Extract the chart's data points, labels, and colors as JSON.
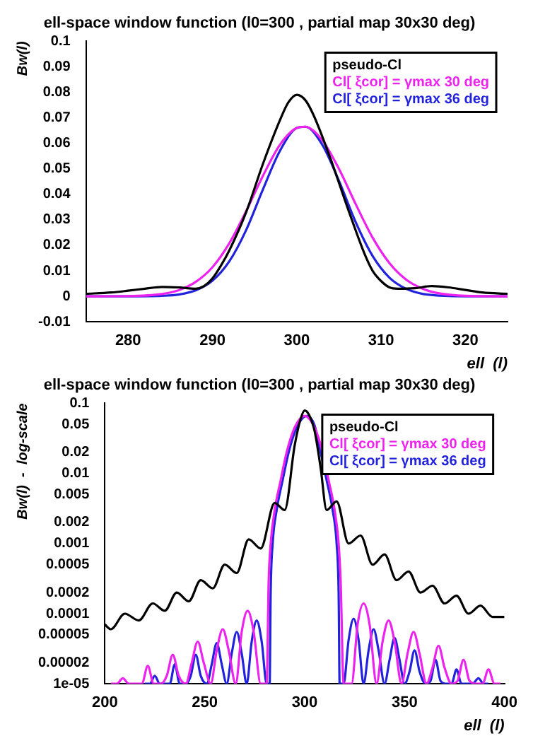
{
  "chart_data": [
    {
      "type": "line",
      "title": "ell-space window function (l0=300 , partial map 30x30 deg)",
      "xlabel": "ell  (l)",
      "ylabel": "Bw(l)",
      "xlim": [
        275,
        325
      ],
      "xticks": [
        280,
        290,
        300,
        310,
        320
      ],
      "ylim": [
        -0.01,
        0.1
      ],
      "yticks": [
        -0.01,
        0,
        0.01,
        0.02,
        0.03,
        0.04,
        0.05,
        0.06,
        0.07,
        0.08,
        0.09,
        0.1
      ],
      "grid": false,
      "legend": "top right",
      "marker": "none",
      "line_style": "solid",
      "series": [
        {
          "name": "pseudo-Cl",
          "color": "#000000",
          "x": [
            275,
            278,
            280,
            282,
            284,
            286,
            288,
            289,
            290,
            291,
            292,
            294,
            296,
            298,
            299,
            300,
            301,
            302,
            304,
            306,
            308,
            309,
            310,
            311,
            312,
            314,
            316,
            318,
            320,
            322,
            325
          ],
          "values": [
            0.001,
            0.0015,
            0.0022,
            0.003,
            0.0037,
            0.0035,
            0.003,
            0.004,
            0.007,
            0.012,
            0.018,
            0.033,
            0.052,
            0.069,
            0.076,
            0.079,
            0.077,
            0.071,
            0.054,
            0.035,
            0.017,
            0.01,
            0.006,
            0.0035,
            0.003,
            0.0032,
            0.004,
            0.0035,
            0.0025,
            0.0015,
            0.001
          ]
        },
        {
          "name": "Cl[ ξcor] = γmax 30 deg",
          "color": "#ee22ee",
          "x": [
            275,
            280,
            284,
            286,
            288,
            290,
            292,
            294,
            296,
            298,
            300,
            301,
            303,
            305,
            307,
            309,
            311,
            313,
            315,
            317,
            320,
            325
          ],
          "values": [
            0,
            0.0001,
            0.0009,
            0.0024,
            0.0056,
            0.0114,
            0.0208,
            0.0334,
            0.0473,
            0.0594,
            0.066,
            0.0665,
            0.0613,
            0.05,
            0.0361,
            0.023,
            0.013,
            0.0065,
            0.0029,
            0.0011,
            0.0002,
            0
          ]
        },
        {
          "name": "Cl[ ξcor] = γmax 36 deg",
          "color": "#2222dd",
          "x": [
            275,
            280,
            284,
            286,
            288,
            290,
            292,
            294,
            296,
            298,
            300,
            301,
            303,
            305,
            307,
            309,
            311,
            313,
            315,
            317,
            320,
            325
          ],
          "values": [
            0,
            0,
            0.0002,
            0.0007,
            0.0023,
            0.0061,
            0.0137,
            0.026,
            0.042,
            0.057,
            0.066,
            0.0665,
            0.0596,
            0.0453,
            0.029,
            0.0158,
            0.0073,
            0.0029,
            0.0009,
            0.0003,
            0,
            0
          ]
        }
      ]
    },
    {
      "type": "line",
      "title": "ell-space window function (l0=300 , partial map 30x30 deg)",
      "xlabel": "ell  (l)",
      "ylabel": "Bw(l)  -  log-scale",
      "log": "y",
      "xlim": [
        200,
        400
      ],
      "xticks": [
        200,
        250,
        300,
        350,
        400
      ],
      "ylim": [
        1e-05,
        0.1
      ],
      "yticks": [
        {
          "value": 1e-05,
          "label": "1e-05"
        },
        {
          "value": 2e-05,
          "label": "0.00002"
        },
        {
          "value": 5e-05,
          "label": "0.00005"
        },
        0.0001,
        0.0002,
        0.0005,
        0.001,
        0.002,
        0.005,
        0.01,
        0.02,
        0.05,
        0.1
      ],
      "grid": false,
      "legend": "top right",
      "marker": "none",
      "line_style": "solid",
      "series": [
        {
          "name": "pseudo-Cl",
          "color": "#000000",
          "x": [
            200,
            203,
            210,
            217,
            224,
            230,
            236,
            242,
            248,
            254,
            260,
            266,
            272,
            278,
            285,
            290,
            295,
            298,
            300,
            302,
            305,
            308,
            311,
            316,
            322,
            328,
            334,
            340,
            346,
            352,
            358,
            364,
            370,
            376,
            382,
            388,
            394,
            400
          ],
          "values": [
            7e-05,
            6e-05,
            0.0001,
            8e-05,
            0.00014,
            0.00011,
            0.0002,
            0.00015,
            0.0003,
            0.00023,
            0.0005,
            0.00038,
            0.00115,
            0.00085,
            0.0038,
            0.003,
            0.025,
            0.06,
            0.079,
            0.07,
            0.04,
            0.012,
            0.003,
            0.004,
            0.001,
            0.0013,
            0.0005,
            0.0007,
            0.0003,
            0.0004,
            0.0002,
            0.00025,
            0.00014,
            0.00018,
            0.0001,
            0.00013,
            9e-05,
            9e-05
          ]
        },
        {
          "name": "Cl[ ξcor] = γmax 30 deg",
          "color": "#ee22ee",
          "x": [
            203,
            206,
            209,
            212,
            215.5,
            218.5,
            221.5,
            224.5,
            228,
            231,
            234,
            237,
            240.5,
            243.5,
            246.5,
            249.5,
            253,
            256,
            259,
            262,
            265.5,
            268.5,
            271.5,
            274.5,
            278,
            281,
            282,
            283,
            285,
            288,
            291,
            295,
            300,
            305,
            309,
            312,
            315,
            317,
            318,
            319.5,
            323.5,
            326.5,
            329.5,
            332.5,
            336,
            339,
            342,
            345,
            348.5,
            351.5,
            354.5,
            357.5,
            361,
            364,
            367,
            370,
            373.5,
            376.5,
            379.5,
            382.5,
            386,
            389,
            392,
            395,
            398
          ],
          "values": [
            1e-05,
            1e-05,
            1.2e-05,
            1e-05,
            1e-05,
            1e-05,
            1.8e-05,
            1e-05,
            1e-05,
            1.3e-05,
            2.6e-05,
            1.3e-05,
            1e-05,
            2e-05,
            4e-05,
            2e-05,
            1e-05,
            3e-05,
            6e-05,
            3e-05,
            1e-05,
            5.5e-05,
            0.00011,
            5.5e-05,
            1e-05,
            1e-05,
            0.0003,
            0.001,
            0.003,
            0.008,
            0.02,
            0.045,
            0.066,
            0.045,
            0.02,
            0.008,
            0.003,
            0.001,
            0.0003,
            1e-05,
            1e-05,
            7e-05,
            0.00014,
            7e-05,
            1e-05,
            4e-05,
            8e-05,
            4e-05,
            1e-05,
            2.7e-05,
            5.5e-05,
            2.7e-05,
            1e-05,
            1.7e-05,
            3.5e-05,
            1.7e-05,
            1e-05,
            1.1e-05,
            2.2e-05,
            1.1e-05,
            1e-05,
            1e-05,
            1.6e-05,
            1e-05,
            1e-05
          ]
        },
        {
          "name": "Cl[ ξcor] = γmax 36 deg",
          "color": "#2222dd",
          "x": [
            220,
            222.5,
            225,
            227.5,
            230,
            232.5,
            235,
            237.5,
            240.5,
            243,
            245.5,
            248,
            251,
            253.5,
            256,
            258.5,
            261,
            263.5,
            266,
            268.5,
            271,
            273.5,
            276,
            278.5,
            281,
            282.5,
            283,
            284,
            286,
            289,
            292,
            296,
            301,
            305,
            308,
            311,
            314,
            316,
            317,
            317.5,
            319.5,
            322,
            324.5,
            327,
            329.5,
            332,
            334.5,
            337,
            340,
            342.5,
            345,
            347.5,
            350,
            352.5,
            355,
            357.5,
            360.5,
            363,
            365.5,
            368,
            371,
            373.5,
            376,
            378.5,
            381.5,
            384,
            387,
            389.5,
            392
          ],
          "values": [
            1e-05,
            1e-05,
            1.3e-05,
            1e-05,
            1e-05,
            1e-05,
            1.9e-05,
            1e-05,
            1e-05,
            1.3e-05,
            2.6e-05,
            1.3e-05,
            1e-05,
            1.9e-05,
            3.8e-05,
            1.9e-05,
            1e-05,
            2.7e-05,
            5.5e-05,
            2.7e-05,
            1e-05,
            4e-05,
            8e-05,
            4e-05,
            1e-05,
            1e-05,
            0.0002,
            0.001,
            0.003,
            0.008,
            0.02,
            0.045,
            0.066,
            0.048,
            0.02,
            0.008,
            0.003,
            0.001,
            0.0002,
            1e-05,
            1e-05,
            4.2e-05,
            8.5e-05,
            4.2e-05,
            1e-05,
            3e-05,
            6e-05,
            3e-05,
            1e-05,
            2.2e-05,
            4.5e-05,
            2.2e-05,
            1e-05,
            1.5e-05,
            3e-05,
            1.5e-05,
            1e-05,
            1.1e-05,
            2.2e-05,
            1.1e-05,
            1e-05,
            1e-05,
            1.6e-05,
            1e-05,
            1e-05,
            1e-05,
            1.2e-05,
            1e-05,
            1e-05
          ]
        }
      ]
    }
  ]
}
